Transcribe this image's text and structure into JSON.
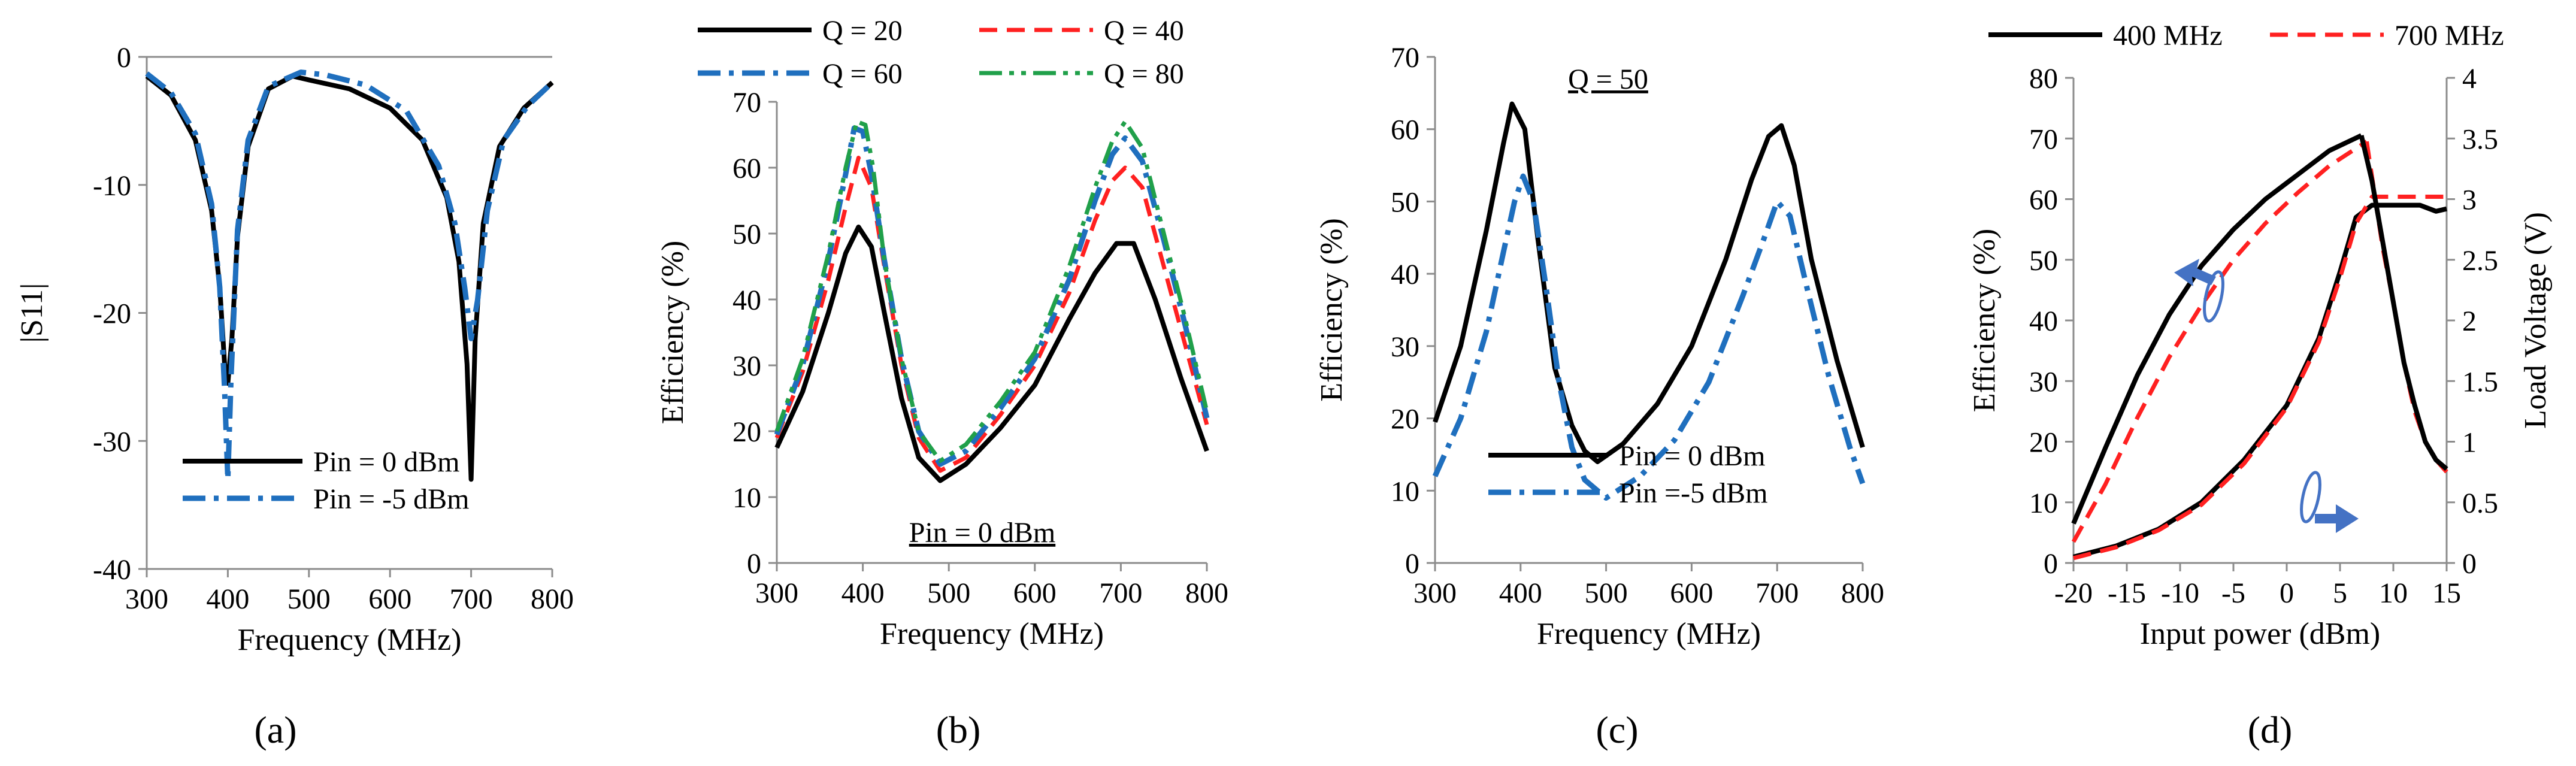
{
  "figure": {
    "captions": [
      "(a)",
      "(b)",
      "(c)",
      "(d)"
    ]
  },
  "colors": {
    "black": "#000000",
    "blue": "#1f6fbe",
    "red": "#ff2020",
    "green": "#20a04a",
    "arrow": "#4472c4"
  },
  "chart_data": [
    {
      "id": "a",
      "type": "line",
      "title": "",
      "xlabel": "Frequency (MHz)",
      "ylabel": "|S11|",
      "xlim": [
        300,
        800
      ],
      "ylim": [
        -40,
        0
      ],
      "xticks": [
        300,
        400,
        500,
        600,
        700,
        800
      ],
      "yticks": [
        0,
        -10,
        -20,
        -30,
        -40
      ],
      "legend_position": "bottom",
      "annotation": "",
      "series": [
        {
          "name": "Pin = 0 dBm",
          "color": "black",
          "dash": "solid",
          "x": [
            300,
            330,
            360,
            380,
            390,
            396,
            400,
            405,
            412,
            425,
            450,
            480,
            500,
            550,
            600,
            640,
            670,
            685,
            695,
            700,
            705,
            715,
            735,
            765,
            800
          ],
          "y": [
            -1.5,
            -3.0,
            -6.5,
            -12.0,
            -18.0,
            -24.0,
            -25.5,
            -22.0,
            -14.0,
            -7.0,
            -2.5,
            -1.5,
            -1.8,
            -2.5,
            -4.0,
            -6.5,
            -11.0,
            -16.0,
            -24.0,
            -33.0,
            -22.0,
            -13.0,
            -7.0,
            -4.0,
            -2.0
          ]
        },
        {
          "name": "Pin = -5 dBm",
          "color": "blue",
          "dash": "dashdot",
          "x": [
            300,
            330,
            360,
            380,
            390,
            396,
            400,
            404,
            412,
            425,
            450,
            490,
            520,
            570,
            620,
            660,
            680,
            692,
            700,
            708,
            720,
            740,
            770,
            800
          ],
          "y": [
            -1.3,
            -2.8,
            -6.0,
            -11.5,
            -18.0,
            -26.0,
            -33.0,
            -25.0,
            -13.5,
            -6.5,
            -2.3,
            -1.2,
            -1.4,
            -2.2,
            -4.2,
            -8.5,
            -13.0,
            -18.0,
            -22.0,
            -19.0,
            -12.0,
            -6.5,
            -3.8,
            -2.0
          ]
        }
      ]
    },
    {
      "id": "b",
      "type": "line",
      "title": "",
      "xlabel": "Frequency (MHz)",
      "ylabel": "Efficiency (%)",
      "xlim": [
        300,
        800
      ],
      "ylim": [
        0,
        70
      ],
      "xticks": [
        300,
        400,
        500,
        600,
        700,
        800
      ],
      "yticks": [
        0,
        10,
        20,
        30,
        40,
        50,
        60,
        70
      ],
      "legend_position": "top",
      "annotation": "Pin = 0 dBm",
      "series": [
        {
          "name": "Q = 20",
          "color": "black",
          "dash": "solid",
          "x": [
            300,
            330,
            360,
            380,
            395,
            410,
            425,
            445,
            465,
            490,
            520,
            560,
            600,
            640,
            670,
            695,
            715,
            740,
            770,
            800
          ],
          "y": [
            17.5,
            26,
            38,
            47,
            51,
            48,
            38,
            25,
            16,
            12.5,
            15,
            20.5,
            27,
            37,
            44,
            48.5,
            48.5,
            40,
            28,
            17
          ]
        },
        {
          "name": "Q = 40",
          "color": "red",
          "dash": "dashed",
          "x": [
            300,
            330,
            360,
            380,
            395,
            410,
            425,
            445,
            465,
            490,
            520,
            560,
            600,
            640,
            670,
            690,
            705,
            725,
            750,
            775,
            800
          ],
          "y": [
            19,
            29,
            43,
            54,
            61.5,
            57,
            45,
            30,
            19,
            14,
            16,
            22.5,
            30,
            41,
            52,
            58,
            60,
            57,
            45,
            33,
            21
          ]
        },
        {
          "name": "Q = 60",
          "color": "blue",
          "dash": "dashdot",
          "x": [
            300,
            330,
            360,
            380,
            390,
            400,
            410,
            425,
            445,
            465,
            490,
            520,
            560,
            600,
            640,
            670,
            690,
            705,
            725,
            750,
            775,
            800
          ],
          "y": [
            19.5,
            30,
            46,
            59,
            66,
            65.5,
            59,
            46,
            31,
            20,
            15,
            17,
            23.5,
            31,
            43,
            55,
            62,
            64.5,
            61,
            49,
            36,
            22
          ]
        },
        {
          "name": "Q = 80",
          "color": "green",
          "dash": "dashdotdot",
          "x": [
            300,
            330,
            360,
            380,
            393,
            403,
            412,
            425,
            445,
            465,
            490,
            520,
            560,
            600,
            640,
            670,
            690,
            705,
            725,
            750,
            775,
            800
          ],
          "y": [
            20,
            31,
            47,
            60,
            67,
            66.5,
            60,
            46,
            31,
            20,
            15.5,
            18,
            24.5,
            32,
            45,
            57,
            64,
            67,
            63,
            50,
            37,
            23
          ]
        }
      ]
    },
    {
      "id": "c",
      "type": "line",
      "title": "",
      "xlabel": "Frequency (MHz)",
      "ylabel": "Efficiency (%)",
      "xlim": [
        300,
        800
      ],
      "ylim": [
        0,
        70
      ],
      "xticks": [
        300,
        400,
        500,
        600,
        700,
        800
      ],
      "yticks": [
        0,
        10,
        20,
        30,
        40,
        50,
        60,
        70
      ],
      "legend_position": "bottom",
      "annotation": "Q = 50",
      "series": [
        {
          "name": "Pin = 0 dBm",
          "color": "black",
          "dash": "solid",
          "x": [
            300,
            330,
            360,
            380,
            390,
            405,
            420,
            440,
            460,
            475,
            490,
            520,
            560,
            600,
            640,
            670,
            690,
            705,
            720,
            740,
            770,
            800
          ],
          "y": [
            19.5,
            30,
            46,
            58,
            63.5,
            60,
            45,
            27,
            19,
            15.5,
            14,
            16.5,
            22,
            30,
            42,
            53,
            59,
            60.5,
            55,
            42,
            28,
            16
          ]
        },
        {
          "name": "Pin =-5 dBm",
          "color": "blue",
          "dash": "dashdot",
          "x": [
            300,
            330,
            360,
            380,
            393,
            403,
            415,
            430,
            445,
            460,
            475,
            500,
            540,
            580,
            620,
            660,
            685,
            700,
            715,
            735,
            760,
            785,
            800
          ],
          "y": [
            12,
            20,
            32,
            43,
            50,
            53.5,
            50,
            38,
            25,
            16,
            11.5,
            9,
            12,
            17,
            25,
            37,
            45,
            50,
            48,
            38,
            26,
            16,
            11
          ]
        }
      ]
    },
    {
      "id": "d",
      "type": "line",
      "title": "",
      "xlabel": "Input power (dBm)",
      "ylabel": "Efficiency (%)",
      "y2label": "Load Voltage (V)",
      "xlim": [
        -20,
        15
      ],
      "ylim": [
        0,
        80
      ],
      "y2lim": [
        0,
        4
      ],
      "xticks": [
        -20,
        -15,
        -10,
        -5,
        0,
        5,
        10,
        15
      ],
      "yticks": [
        0,
        10,
        20,
        30,
        40,
        50,
        60,
        70,
        80
      ],
      "y2ticks": [
        0,
        0.5,
        1,
        1.5,
        2,
        2.5,
        3,
        3.5,
        4
      ],
      "legend_position": "top",
      "annotation": "",
      "series": [
        {
          "name": "400 MHz",
          "color": "black",
          "dash": "solid",
          "axis": "left",
          "x": [
            -20,
            -17,
            -14,
            -11,
            -8,
            -5,
            -2,
            1,
            4,
            7
          ],
          "y": [
            6.5,
            19,
            31,
            41,
            49,
            55,
            60,
            64,
            68,
            70.5
          ]
        },
        {
          "name": "400 MHz",
          "color": "black",
          "dash": "solid",
          "axis": "right",
          "legend": false,
          "x": [
            -20,
            -16,
            -12,
            -8,
            -4,
            0,
            3,
            5,
            6.5,
            8,
            11,
            12.5,
            14,
            15
          ],
          "y": [
            0.05,
            0.14,
            0.28,
            0.5,
            0.85,
            1.3,
            1.85,
            2.4,
            2.85,
            2.95,
            2.95,
            2.95,
            2.9,
            2.92
          ]
        },
        {
          "name": "700 MHz",
          "color": "red",
          "dash": "dashed",
          "axis": "left",
          "x": [
            -20,
            -17,
            -14,
            -11,
            -8,
            -5,
            -2,
            1,
            4,
            7.5
          ],
          "y": [
            3.5,
            13,
            24,
            34,
            42.5,
            50,
            56,
            61,
            65.5,
            69.5
          ]
        },
        {
          "name": "700 MHz",
          "color": "red",
          "dash": "dashed",
          "axis": "right",
          "legend": false,
          "x": [
            -20,
            -16,
            -12,
            -8,
            -4,
            0,
            3,
            5,
            6.5,
            8,
            9,
            10,
            11,
            12,
            13,
            14,
            15
          ],
          "y": [
            0.04,
            0.13,
            0.27,
            0.48,
            0.82,
            1.28,
            1.82,
            2.35,
            2.8,
            3.02,
            3.02,
            3.02,
            3.02,
            3.02,
            3.02,
            3.02,
            3.02
          ]
        },
        {
          "name": "700 MHz",
          "color": "red",
          "dash": "dashed",
          "axis": "left",
          "legend": false,
          "x": [
            7.5,
            9,
            10,
            11,
            12,
            13,
            14,
            15
          ],
          "y": [
            69.5,
            52,
            43,
            33,
            25,
            20,
            17,
            15
          ]
        },
        {
          "name": "400 MHz",
          "color": "black",
          "dash": "solid",
          "axis": "left",
          "legend": false,
          "x": [
            7,
            8,
            9,
            10,
            11,
            12,
            13,
            14,
            15
          ],
          "y": [
            70.5,
            63,
            53,
            43,
            33,
            26,
            20,
            17,
            15.5
          ]
        }
      ]
    }
  ]
}
